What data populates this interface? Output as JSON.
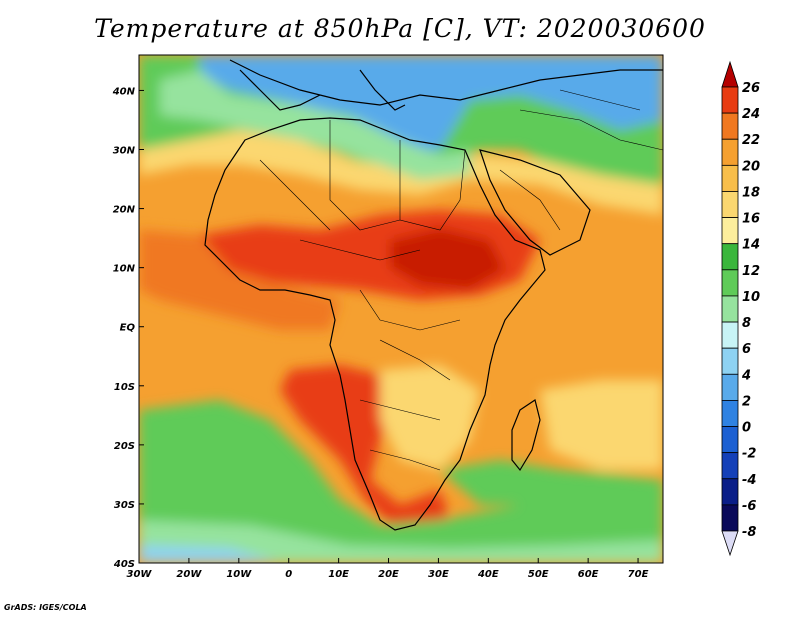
{
  "title": "Temperature at 850hPa [C], VT: 2020030600",
  "credit": "GrADS: IGES/COLA",
  "map": {
    "projection": "latlon",
    "lon_range": [
      -30,
      75
    ],
    "lat_range": [
      -40,
      46
    ],
    "x_ticks": [
      "30W",
      "20W",
      "10W",
      "0",
      "10E",
      "20E",
      "30E",
      "40E",
      "50E",
      "60E",
      "70E"
    ],
    "y_ticks": [
      "40S",
      "30S",
      "20S",
      "10S",
      "EQ",
      "10N",
      "20N",
      "30N",
      "40N"
    ]
  },
  "colorbar": {
    "labels": [
      "26",
      "24",
      "22",
      "20",
      "18",
      "16",
      "14",
      "12",
      "10",
      "8",
      "6",
      "4",
      "2",
      "0",
      "-2",
      "-4",
      "-6",
      "-8"
    ],
    "colors": [
      "#b40000",
      "#e83c12",
      "#f07820",
      "#f5a030",
      "#f8be4a",
      "#fbd770",
      "#fdee9c",
      "#3ab63c",
      "#5fcb58",
      "#96e39e",
      "#c8f4f6",
      "#8ed2f2",
      "#59aaea",
      "#2f82e2",
      "#1c60d2",
      "#1440b8",
      "#0a1e88",
      "#0a0a5a",
      "#dcdcf5"
    ]
  },
  "regions_colors": {
    "ocean_warm": "#f5a030",
    "sahel_hot": "#e83c12",
    "core_hot": "#c81e00",
    "north_cool": "#5fcb58",
    "europe_cold": "#59aaea",
    "south_ocean_cool": "#5fcb58",
    "south_cold": "#96e39e"
  }
}
